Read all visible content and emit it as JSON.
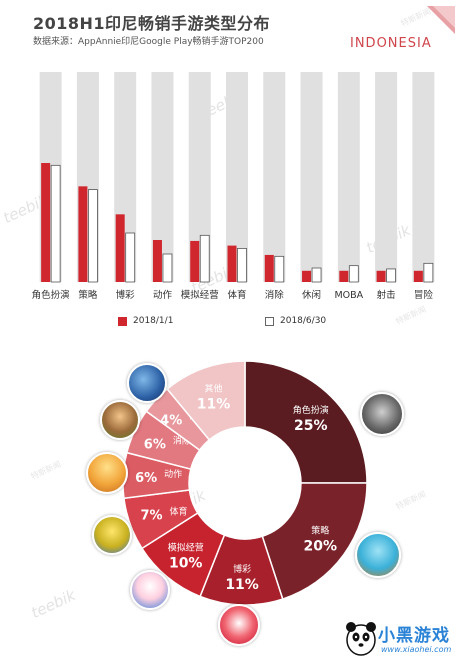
{
  "header": {
    "title": "2018H1印尼畅销手游类型分布",
    "subtitle": "数据来源：AppAnnie印尼Google Play畅销手游TOP200",
    "region": "INDONESIA"
  },
  "watermarks": {
    "en": "teebik",
    "cn": "特斯新闻"
  },
  "colors": {
    "bar_series1": "#d0262d",
    "bar_series2": "#ffffff",
    "bar_background": "#e0e0e0",
    "accent": "#d0454c"
  },
  "legend": {
    "series1": "2018/1/1",
    "series2": "2018/6/30"
  },
  "chart_data": [
    {
      "type": "bar",
      "categories": [
        "角色扮演",
        "策略",
        "博彩",
        "动作",
        "模拟经营",
        "体育",
        "消除",
        "休闲",
        "MOBA",
        "射击",
        "冒险"
      ],
      "series": [
        {
          "name": "2018/1/1",
          "values": [
            25.5,
            20.5,
            14.5,
            9.0,
            8.8,
            7.8,
            5.8,
            2.4,
            2.4,
            2.4,
            2.4
          ]
        },
        {
          "name": "2018/6/30",
          "values": [
            25.0,
            19.8,
            10.5,
            6.0,
            10.0,
            7.2,
            5.5,
            3.0,
            3.5,
            2.8,
            4.0
          ]
        }
      ],
      "ylim": [
        0,
        45
      ]
    },
    {
      "type": "pie",
      "labels": [
        "角色扮演",
        "策略",
        "博彩",
        "模拟经营",
        "体育",
        "动作",
        "消除",
        "MOBA",
        "其他"
      ],
      "values": [
        25,
        20,
        11,
        10,
        7,
        6,
        6,
        4,
        11
      ],
      "percent_labels": [
        "25%",
        "20%",
        "11%",
        "10%",
        "7%",
        "6%",
        "6%",
        "4%",
        "11%"
      ],
      "colors": [
        "#5a1c20",
        "#7a2229",
        "#a8202c",
        "#c7232f",
        "#d8424c",
        "#dc5c64",
        "#e27880",
        "#e8989d",
        "#f1c4c6"
      ]
    }
  ],
  "brand": {
    "text": "小黑游戏",
    "url_text": "www.xiaohei.com"
  }
}
